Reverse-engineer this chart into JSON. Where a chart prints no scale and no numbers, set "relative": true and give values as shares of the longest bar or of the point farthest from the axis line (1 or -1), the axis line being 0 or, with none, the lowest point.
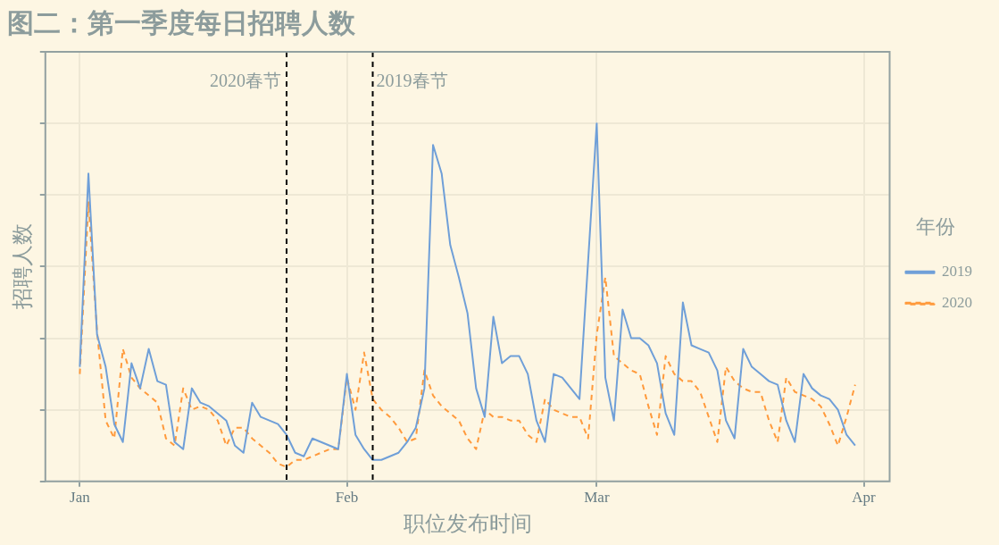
{
  "chart_data": {
    "type": "line",
    "title": "图二：第一季度每日招聘人数",
    "xlabel": "职位发布时间",
    "ylabel": "招聘人数",
    "legend_title": "年份",
    "relative": true,
    "grid": true,
    "legend": "right",
    "marker": "none",
    "xlim": [
      "2019-12-28",
      "2020-04-04"
    ],
    "xticks": [
      {
        "value": "2020-01-01",
        "label": "Jan"
      },
      {
        "value": "2020-02-01",
        "label": "Feb"
      },
      {
        "value": "2020-03-01",
        "label": "Mar"
      },
      {
        "value": "2020-04-01",
        "label": "Apr"
      }
    ],
    "ref_lines": [
      {
        "axis": "x",
        "value": "2020-01-25",
        "label": "2020春节",
        "color": "#000000",
        "line_style": "dashed"
      },
      {
        "axis": "x",
        "value": "2020-02-04",
        "label": "2019春节",
        "color": "#000000",
        "line_style": "dashed"
      }
    ],
    "series": [
      {
        "name": "2019",
        "color": "#6f9fd8",
        "line_style": "solid",
        "x": [
          "2020-01-01",
          "2020-01-02",
          "2020-01-03",
          "2020-01-04",
          "2020-01-05",
          "2020-01-06",
          "2020-01-07",
          "2020-01-08",
          "2020-01-09",
          "2020-01-10",
          "2020-01-11",
          "2020-01-12",
          "2020-01-13",
          "2020-01-14",
          "2020-01-15",
          "2020-01-16",
          "2020-01-17",
          "2020-01-18",
          "2020-01-19",
          "2020-01-20",
          "2020-01-21",
          "2020-01-22",
          "2020-01-23",
          "2020-01-24",
          "2020-01-25",
          "2020-01-26",
          "2020-01-27",
          "2020-01-28",
          "2020-01-29",
          "2020-01-30",
          "2020-01-31",
          "2020-02-01",
          "2020-02-02",
          "2020-02-03",
          "2020-02-04",
          "2020-02-05",
          "2020-02-06",
          "2020-02-07",
          "2020-02-08",
          "2020-02-09",
          "2020-02-10",
          "2020-02-11",
          "2020-02-12",
          "2020-02-13",
          "2020-02-14",
          "2020-02-15",
          "2020-02-16",
          "2020-02-17",
          "2020-02-18",
          "2020-02-19",
          "2020-02-20",
          "2020-02-21",
          "2020-02-22",
          "2020-02-23",
          "2020-02-24",
          "2020-02-25",
          "2020-02-26",
          "2020-02-27",
          "2020-02-28",
          "2020-03-01",
          "2020-03-02",
          "2020-03-03",
          "2020-03-04",
          "2020-03-05",
          "2020-03-06",
          "2020-03-07",
          "2020-03-08",
          "2020-03-09",
          "2020-03-10",
          "2020-03-11",
          "2020-03-12",
          "2020-03-13",
          "2020-03-14",
          "2020-03-15",
          "2020-03-16",
          "2020-03-17",
          "2020-03-18",
          "2020-03-19",
          "2020-03-20",
          "2020-03-21",
          "2020-03-22",
          "2020-03-23",
          "2020-03-24",
          "2020-03-25",
          "2020-03-26",
          "2020-03-27",
          "2020-03-28",
          "2020-03-29",
          "2020-03-30",
          "2020-03-31"
        ],
        "values": [
          0.32,
          0.86,
          0.41,
          0.32,
          0.16,
          0.11,
          0.33,
          0.26,
          0.37,
          0.28,
          0.27,
          0.11,
          0.09,
          0.26,
          0.22,
          0.21,
          0.19,
          0.17,
          0.1,
          0.08,
          0.22,
          0.18,
          0.17,
          0.16,
          0.13,
          0.08,
          0.07,
          0.12,
          0.11,
          0.1,
          0.09,
          0.3,
          0.13,
          0.09,
          0.06,
          0.06,
          0.07,
          0.08,
          0.11,
          0.15,
          0.26,
          0.94,
          0.86,
          0.66,
          0.57,
          0.47,
          0.26,
          0.18,
          0.46,
          0.33,
          0.35,
          0.35,
          0.3,
          0.17,
          0.11,
          0.3,
          0.29,
          0.26,
          0.23,
          1,
          0.29,
          0.17,
          0.48,
          0.4,
          0.4,
          0.38,
          0.33,
          0.19,
          0.13,
          0.5,
          0.38,
          0.37,
          0.36,
          0.31,
          0.17,
          0.12,
          0.37,
          0.32,
          0.3,
          0.28,
          0.27,
          0.17,
          0.11,
          0.3,
          0.26,
          0.24,
          0.23,
          0.2,
          0.13,
          0.1
        ]
      },
      {
        "name": "2020",
        "color": "#ff9a3c",
        "line_style": "dashed",
        "x": [
          "2020-01-01",
          "2020-01-02",
          "2020-01-03",
          "2020-01-04",
          "2020-01-05",
          "2020-01-06",
          "2020-01-07",
          "2020-01-08",
          "2020-01-09",
          "2020-01-10",
          "2020-01-11",
          "2020-01-12",
          "2020-01-13",
          "2020-01-14",
          "2020-01-15",
          "2020-01-16",
          "2020-01-17",
          "2020-01-18",
          "2020-01-19",
          "2020-01-20",
          "2020-01-21",
          "2020-01-22",
          "2020-01-23",
          "2020-01-24",
          "2020-01-25",
          "2020-01-26",
          "2020-01-27",
          "2020-01-28",
          "2020-01-29",
          "2020-01-30",
          "2020-01-31",
          "2020-02-01",
          "2020-02-02",
          "2020-02-03",
          "2020-02-04",
          "2020-02-05",
          "2020-02-06",
          "2020-02-07",
          "2020-02-08",
          "2020-02-09",
          "2020-02-10",
          "2020-02-11",
          "2020-02-12",
          "2020-02-13",
          "2020-02-14",
          "2020-02-15",
          "2020-02-16",
          "2020-02-17",
          "2020-02-18",
          "2020-02-19",
          "2020-02-20",
          "2020-02-21",
          "2020-02-22",
          "2020-02-23",
          "2020-02-24",
          "2020-02-25",
          "2020-02-26",
          "2020-02-27",
          "2020-02-28",
          "2020-02-29",
          "2020-03-01",
          "2020-03-02",
          "2020-03-03",
          "2020-03-04",
          "2020-03-05",
          "2020-03-06",
          "2020-03-07",
          "2020-03-08",
          "2020-03-09",
          "2020-03-10",
          "2020-03-11",
          "2020-03-12",
          "2020-03-13",
          "2020-03-14",
          "2020-03-15",
          "2020-03-16",
          "2020-03-17",
          "2020-03-18",
          "2020-03-19",
          "2020-03-20",
          "2020-03-21",
          "2020-03-22",
          "2020-03-23",
          "2020-03-24",
          "2020-03-25",
          "2020-03-26",
          "2020-03-27",
          "2020-03-28",
          "2020-03-29",
          "2020-03-30",
          "2020-03-31"
        ],
        "values": [
          0.3,
          0.78,
          0.42,
          0.17,
          0.12,
          0.37,
          0.29,
          0.26,
          0.24,
          0.22,
          0.12,
          0.1,
          0.26,
          0.2,
          0.21,
          0.2,
          0.17,
          0.1,
          0.15,
          0.15,
          0.12,
          0.1,
          0.08,
          0.05,
          0.04,
          0.06,
          0.06,
          0.07,
          0.08,
          0.09,
          0.09,
          0.29,
          0.2,
          0.36,
          0.23,
          0.2,
          0.18,
          0.15,
          0.11,
          0.12,
          0.31,
          0.24,
          0.21,
          0.19,
          0.17,
          0.12,
          0.09,
          0.2,
          0.18,
          0.18,
          0.17,
          0.17,
          0.13,
          0.11,
          0.23,
          0.2,
          0.19,
          0.18,
          0.18,
          0.12,
          0.41,
          0.57,
          0.35,
          0.33,
          0.31,
          0.3,
          0.21,
          0.13,
          0.35,
          0.3,
          0.28,
          0.28,
          0.25,
          0.18,
          0.11,
          0.32,
          0.28,
          0.26,
          0.25,
          0.25,
          0.17,
          0.11,
          0.29,
          0.25,
          0.24,
          0.23,
          0.21,
          0.16,
          0.1,
          0.18,
          0.27
        ]
      }
    ]
  }
}
